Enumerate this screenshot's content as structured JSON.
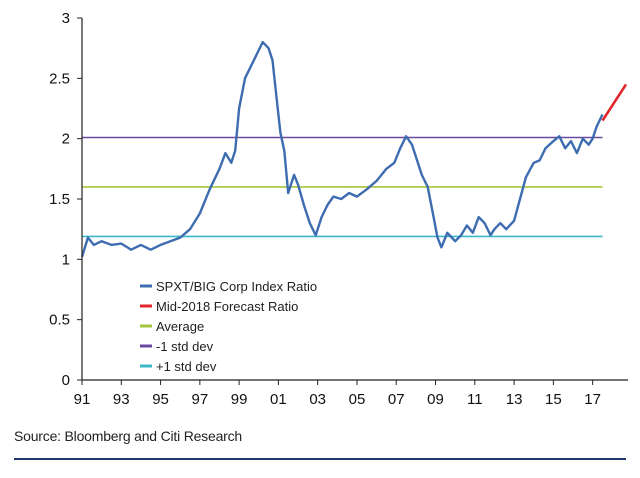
{
  "chart_data": {
    "type": "line",
    "title": "",
    "xlabel": "",
    "ylabel": "",
    "x_range": [
      1991,
      2018.8
    ],
    "ylim": [
      0,
      3
    ],
    "y_ticks": [
      "0",
      "0.5",
      "1",
      "1.5",
      "2",
      "2.5",
      "3"
    ],
    "x_ticks": [
      {
        "year": 1991,
        "label": "91"
      },
      {
        "year": 1993,
        "label": "93"
      },
      {
        "year": 1995,
        "label": "95"
      },
      {
        "year": 1997,
        "label": "97"
      },
      {
        "year": 1999,
        "label": "99"
      },
      {
        "year": 2001,
        "label": "01"
      },
      {
        "year": 2003,
        "label": "03"
      },
      {
        "year": 2005,
        "label": "05"
      },
      {
        "year": 2007,
        "label": "07"
      },
      {
        "year": 2009,
        "label": "09"
      },
      {
        "year": 2011,
        "label": "11"
      },
      {
        "year": 2013,
        "label": "13"
      },
      {
        "year": 2015,
        "label": "15"
      },
      {
        "year": 2017,
        "label": "17"
      }
    ],
    "series": [
      {
        "name": "SPXT/BIG Corp Index Ratio",
        "color": "#3d6cb0",
        "x": [
          1991.0,
          1991.3,
          1991.6,
          1992.0,
          1992.5,
          1993.0,
          1993.5,
          1994.0,
          1994.5,
          1995.0,
          1995.5,
          1996.0,
          1996.5,
          1997.0,
          1997.5,
          1998.0,
          1998.3,
          1998.6,
          1998.8,
          1999.0,
          1999.3,
          1999.6,
          1999.9,
          2000.2,
          2000.5,
          2000.7,
          2000.9,
          2001.1,
          2001.3,
          2001.5,
          2001.8,
          2002.0,
          2002.3,
          2002.6,
          2002.9,
          2003.2,
          2003.5,
          2003.8,
          2004.2,
          2004.6,
          2005.0,
          2005.5,
          2006.0,
          2006.5,
          2006.9,
          2007.2,
          2007.5,
          2007.8,
          2008.0,
          2008.3,
          2008.6,
          2008.9,
          2009.1,
          2009.3,
          2009.6,
          2010.0,
          2010.3,
          2010.6,
          2010.9,
          2011.2,
          2011.5,
          2011.8,
          2012.0,
          2012.3,
          2012.6,
          2013.0,
          2013.3,
          2013.6,
          2014.0,
          2014.3,
          2014.6,
          2015.0,
          2015.3,
          2015.6,
          2015.9,
          2016.2,
          2016.5,
          2016.8,
          2017.0,
          2017.2,
          2017.5
        ],
        "values": [
          1.02,
          1.18,
          1.12,
          1.15,
          1.12,
          1.13,
          1.08,
          1.12,
          1.08,
          1.12,
          1.15,
          1.18,
          1.25,
          1.38,
          1.58,
          1.75,
          1.88,
          1.8,
          1.9,
          2.25,
          2.5,
          2.6,
          2.7,
          2.8,
          2.75,
          2.65,
          2.35,
          2.05,
          1.9,
          1.55,
          1.7,
          1.62,
          1.45,
          1.3,
          1.2,
          1.35,
          1.45,
          1.52,
          1.5,
          1.55,
          1.52,
          1.58,
          1.65,
          1.75,
          1.8,
          1.92,
          2.02,
          1.95,
          1.85,
          1.7,
          1.6,
          1.35,
          1.18,
          1.1,
          1.22,
          1.15,
          1.2,
          1.28,
          1.22,
          1.35,
          1.3,
          1.2,
          1.25,
          1.3,
          1.25,
          1.32,
          1.5,
          1.68,
          1.8,
          1.82,
          1.92,
          1.98,
          2.02,
          1.92,
          1.98,
          1.88,
          2.0,
          1.95,
          2.0,
          2.1,
          2.2
        ]
      },
      {
        "name": "Mid-2018 Forecast Ratio",
        "color": "#e0262a",
        "x": [
          2017.5,
          2018.7
        ],
        "values": [
          2.15,
          2.45
        ]
      },
      {
        "name": "Average",
        "color": "#a4c63c",
        "x": [
          1991.0,
          2017.5
        ],
        "values": [
          1.6,
          1.6
        ]
      },
      {
        "name": "-1 std dev",
        "color": "#6a4aa0",
        "x": [
          1991.0,
          2017.5
        ],
        "values": [
          2.01,
          2.01
        ]
      },
      {
        "name": "+1 std dev",
        "color": "#3bb8c8",
        "x": [
          1991.0,
          2017.5
        ],
        "values": [
          1.19,
          1.19
        ]
      }
    ],
    "legend_placement": "bottom-left"
  },
  "footer": {
    "source": "Source: Bloomberg and Citi Research"
  }
}
